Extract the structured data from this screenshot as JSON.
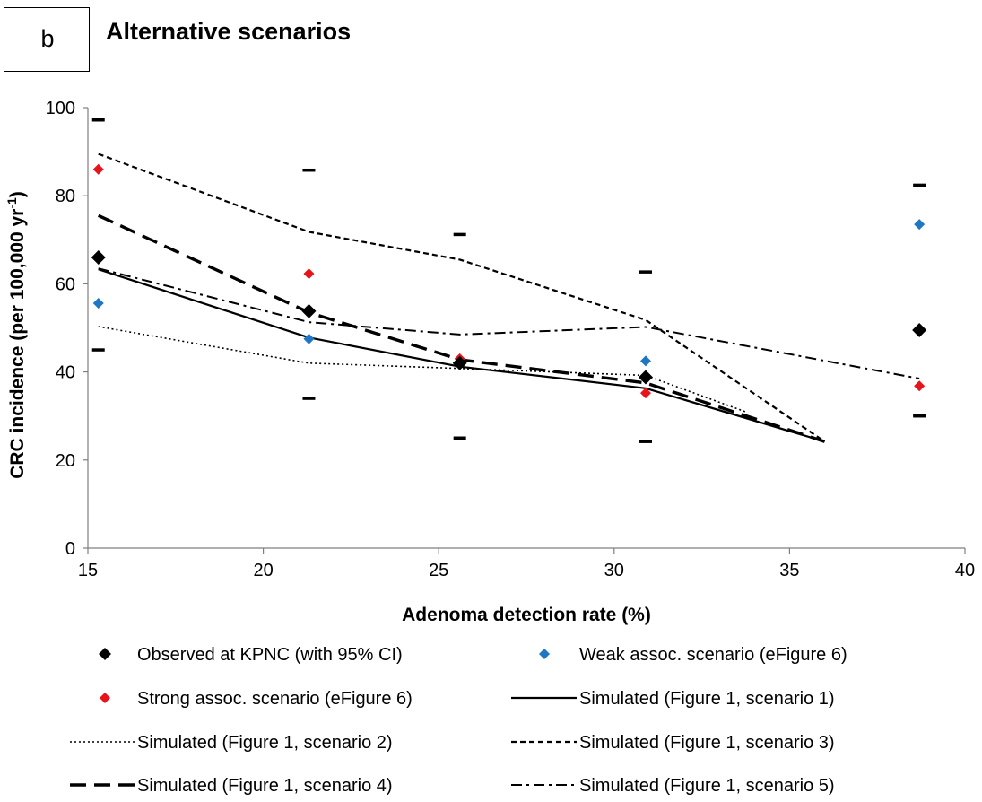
{
  "panel_label": "b",
  "chart_data": {
    "type": "scatter",
    "title": "Alternative scenarios",
    "xlabel": "Adenoma detection rate (%)",
    "ylabel": "CRC incidence (per 100,000 yr",
    "ylabel_sup": "-1",
    "ylabel_end": ")",
    "xlim": [
      15,
      40
    ],
    "ylim": [
      0,
      100
    ],
    "xticks": [
      15,
      20,
      25,
      30,
      35,
      40
    ],
    "yticks": [
      0,
      20,
      40,
      60,
      80,
      100
    ],
    "grid": false,
    "legend_position": "bottom",
    "series": [
      {
        "name": "Observed at KPNC (with 95% CI)",
        "kind": "marker",
        "color": "#000000",
        "x": [
          15.3,
          21.3,
          25.6,
          30.9,
          38.7
        ],
        "y": [
          66.0,
          53.8,
          42.0,
          38.8,
          49.5
        ],
        "ci_low": [
          45.0,
          34.0,
          25.0,
          24.2,
          30.0
        ],
        "ci_high": [
          97.2,
          85.8,
          71.2,
          62.7,
          82.4
        ]
      },
      {
        "name": "Weak assoc. scenario (eFigure 6)",
        "kind": "marker",
        "color": "#1f77c4",
        "x": [
          15.3,
          21.3,
          25.6,
          30.9,
          38.7
        ],
        "y": [
          55.6,
          47.5,
          41.8,
          42.5,
          73.5
        ]
      },
      {
        "name": "Strong assoc. scenario (eFigure 6)",
        "kind": "marker",
        "color": "#e8141b",
        "x": [
          15.3,
          21.3,
          25.6,
          30.9,
          38.7
        ],
        "y": [
          86.0,
          62.3,
          43.0,
          35.2,
          36.8
        ]
      },
      {
        "name": "Simulated (Figure 1, scenario 1)",
        "kind": "line",
        "dash": "solid",
        "color": "#000000",
        "x": [
          15.3,
          21.3,
          25.6,
          30.9,
          36.0
        ],
        "y": [
          63.3,
          47.8,
          41.2,
          36.3,
          24.2
        ]
      },
      {
        "name": "Simulated (Figure 1, scenario 2)",
        "kind": "line",
        "dash": "dotted",
        "color": "#000000",
        "x": [
          15.3,
          21.3,
          25.6,
          30.9,
          33.8
        ],
        "y": [
          50.3,
          42.0,
          40.8,
          39.2,
          30.8
        ]
      },
      {
        "name": "Simulated (Figure 1, scenario 3)",
        "kind": "line",
        "dash": "short-dash",
        "color": "#000000",
        "x": [
          15.3,
          21.3,
          25.6,
          30.9,
          36.0
        ],
        "y": [
          89.5,
          71.8,
          65.5,
          51.8,
          24.2
        ]
      },
      {
        "name": "Simulated (Figure 1, scenario 4)",
        "kind": "line",
        "dash": "long-dash",
        "color": "#000000",
        "x": [
          15.3,
          21.3,
          25.6,
          30.9,
          36.0
        ],
        "y": [
          75.5,
          53.5,
          42.8,
          37.5,
          24.2
        ]
      },
      {
        "name": "Simulated (Figure 1, scenario 5)",
        "kind": "line",
        "dash": "dash-dot",
        "color": "#000000",
        "x": [
          15.3,
          21.3,
          25.6,
          30.9,
          38.7
        ],
        "y": [
          63.5,
          51.3,
          48.5,
          50.2,
          38.5
        ]
      }
    ]
  }
}
